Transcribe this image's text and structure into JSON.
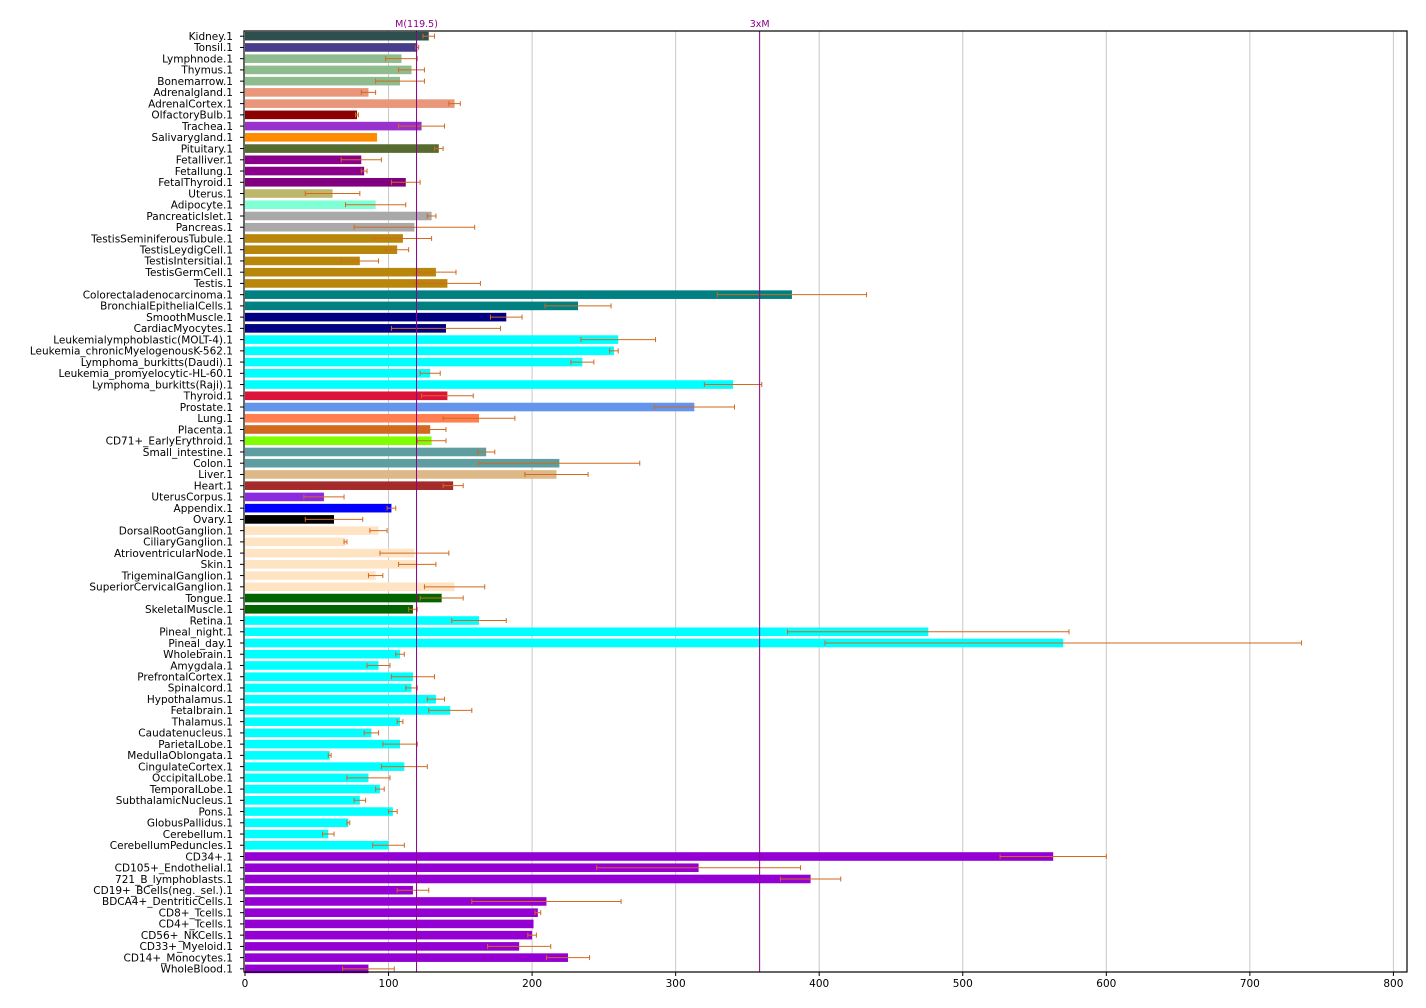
{
  "chart_data": {
    "type": "bar",
    "orientation": "horizontal",
    "title": "",
    "xlabel": "",
    "ylabel": "",
    "xlim": [
      0,
      810
    ],
    "xticks": [
      0,
      100,
      200,
      300,
      400,
      500,
      600,
      700,
      800
    ],
    "grid": "vertical",
    "error_color": "#d2691e",
    "reference_lines": [
      {
        "label": "M(119.5)",
        "value": 119.5,
        "color": "#8b008b"
      },
      {
        "label": "3xM",
        "value": 358.5,
        "color": "#8b008b"
      }
    ],
    "bars": [
      {
        "label": "Kidney.1",
        "value": 128,
        "error": 4,
        "color": "#2f4f4f"
      },
      {
        "label": "Tonsil.1",
        "value": 120,
        "error": 1,
        "color": "#483d8b"
      },
      {
        "label": "Lymphnode.1",
        "value": 109,
        "error": 11,
        "color": "#8fbc8f"
      },
      {
        "label": "Thymus.1",
        "value": 116,
        "error": 9,
        "color": "#8fbc8f"
      },
      {
        "label": "Bonemarrow.1",
        "value": 108,
        "error": 17,
        "color": "#8fbc8f"
      },
      {
        "label": "Adrenalgland.1",
        "value": 86,
        "error": 5,
        "color": "#e9967a"
      },
      {
        "label": "AdrenalCortex.1",
        "value": 146,
        "error": 4,
        "color": "#e9967a"
      },
      {
        "label": "OlfactoryBulb.1",
        "value": 78,
        "error": 1,
        "color": "#8b0000"
      },
      {
        "label": "Trachea.1",
        "value": 123,
        "error": 16,
        "color": "#9932cc"
      },
      {
        "label": "Salivarygland.1",
        "value": 92,
        "error": 0,
        "color": "#ff8c00"
      },
      {
        "label": "Pituitary.1",
        "value": 135,
        "error": 3,
        "color": "#556b2f"
      },
      {
        "label": "Fetalliver.1",
        "value": 81,
        "error": 14,
        "color": "#8b008b"
      },
      {
        "label": "Fetallung.1",
        "value": 83,
        "error": 2,
        "color": "#8b008b"
      },
      {
        "label": "FetalThyroid.1",
        "value": 112,
        "error": 10,
        "color": "#800080"
      },
      {
        "label": "Uterus.1",
        "value": 61,
        "error": 19,
        "color": "#bdb76b"
      },
      {
        "label": "Adipocyte.1",
        "value": 91,
        "error": 21,
        "color": "#7fffd4"
      },
      {
        "label": "PancreaticIslet.1",
        "value": 130,
        "error": 3,
        "color": "#a9a9a9"
      },
      {
        "label": "Pancreas.1",
        "value": 118,
        "error": 42,
        "color": "#a9a9a9"
      },
      {
        "label": "TestisSeminiferousTubule.1",
        "value": 110,
        "error": 20,
        "color": "#b8860b"
      },
      {
        "label": "TestisLeydigCell.1",
        "value": 106,
        "error": 8,
        "color": "#b8860b"
      },
      {
        "label": "TestisIntersitial.1",
        "value": 80,
        "error": 13,
        "color": "#b8860b"
      },
      {
        "label": "TestisGermCell.1",
        "value": 133,
        "error": 14,
        "color": "#b8860b"
      },
      {
        "label": "Testis.1",
        "value": 141,
        "error": 23,
        "color": "#b8860b"
      },
      {
        "label": "Colorectaladenocarcinoma.1",
        "value": 381,
        "error": 52,
        "color": "#008080"
      },
      {
        "label": "BronchialEpithelialCells.1",
        "value": 232,
        "error": 23,
        "color": "#008080"
      },
      {
        "label": "SmoothMuscle.1",
        "value": 182,
        "error": 11,
        "color": "#000080"
      },
      {
        "label": "CardiacMyocytes.1",
        "value": 140,
        "error": 38,
        "color": "#000080"
      },
      {
        "label": "Leukemialymphoblastic(MOLT-4).1",
        "value": 260,
        "error": 26,
        "color": "#00ffff"
      },
      {
        "label": "Leukemia_chronicMyelogenousK-562.1",
        "value": 257,
        "error": 3,
        "color": "#00ffff"
      },
      {
        "label": "Lymphoma_burkitts(Daudi).1",
        "value": 235,
        "error": 8,
        "color": "#00ffff"
      },
      {
        "label": "Leukemia_promyelocytic-HL-60.1",
        "value": 129,
        "error": 7,
        "color": "#00ffff"
      },
      {
        "label": "Lymphoma_burkitts(Raji).1",
        "value": 340,
        "error": 20,
        "color": "#00ffff"
      },
      {
        "label": "Thyroid.1",
        "value": 141,
        "error": 18,
        "color": "#dc143c"
      },
      {
        "label": "Prostate.1",
        "value": 313,
        "error": 28,
        "color": "#6495ed"
      },
      {
        "label": "Lung.1",
        "value": 163,
        "error": 25,
        "color": "#ff7f50"
      },
      {
        "label": "Placenta.1",
        "value": 129,
        "error": 11,
        "color": "#d2691e"
      },
      {
        "label": "CD71+_EarlyErythroid.1",
        "value": 130,
        "error": 10,
        "color": "#7fff00"
      },
      {
        "label": "Small_intestine.1",
        "value": 168,
        "error": 6,
        "color": "#5f9ea0"
      },
      {
        "label": "Colon.1",
        "value": 219,
        "error": 56,
        "color": "#5f9ea0"
      },
      {
        "label": "Liver.1",
        "value": 217,
        "error": 22,
        "color": "#deb887"
      },
      {
        "label": "Heart.1",
        "value": 145,
        "error": 7,
        "color": "#a52a2a"
      },
      {
        "label": "UterusCorpus.1",
        "value": 55,
        "error": 14,
        "color": "#8a2be2"
      },
      {
        "label": "Appendix.1",
        "value": 102,
        "error": 3,
        "color": "#0000ff"
      },
      {
        "label": "Ovary.1",
        "value": 62,
        "error": 20,
        "color": "#000000"
      },
      {
        "label": "DorsalRootGanglion.1",
        "value": 93,
        "error": 6,
        "color": "#ffe4c4"
      },
      {
        "label": "CiliaryGanglion.1",
        "value": 70,
        "error": 1,
        "color": "#ffe4c4"
      },
      {
        "label": "AtrioventricularNode.1",
        "value": 118,
        "error": 24,
        "color": "#ffe4c4"
      },
      {
        "label": "Skin.1",
        "value": 120,
        "error": 13,
        "color": "#ffe4c4"
      },
      {
        "label": "TrigeminalGanglion.1",
        "value": 91,
        "error": 5,
        "color": "#ffe4c4"
      },
      {
        "label": "SuperiorCervicalGanglion.1",
        "value": 146,
        "error": 21,
        "color": "#ffe4c4"
      },
      {
        "label": "Tongue.1",
        "value": 137,
        "error": 15,
        "color": "#006400"
      },
      {
        "label": "SkeletalMuscle.1",
        "value": 117,
        "error": 3,
        "color": "#006400"
      },
      {
        "label": "Retina.1",
        "value": 163,
        "error": 19,
        "color": "#00ffff"
      },
      {
        "label": "Pineal_night.1",
        "value": 476,
        "error": 98,
        "color": "#00ffff"
      },
      {
        "label": "Pineal_day.1",
        "value": 570,
        "error": 166,
        "color": "#00ffff"
      },
      {
        "label": "Wholebrain.1",
        "value": 108,
        "error": 3,
        "color": "#00ffff"
      },
      {
        "label": "Amygdala.1",
        "value": 93,
        "error": 8,
        "color": "#00ffff"
      },
      {
        "label": "PrefrontalCortex.1",
        "value": 117,
        "error": 15,
        "color": "#00ffff"
      },
      {
        "label": "Spinalcord.1",
        "value": 116,
        "error": 4,
        "color": "#00ffff"
      },
      {
        "label": "Hypothalamus.1",
        "value": 133,
        "error": 6,
        "color": "#00ffff"
      },
      {
        "label": "Fetalbrain.1",
        "value": 143,
        "error": 15,
        "color": "#00ffff"
      },
      {
        "label": "Thalamus.1",
        "value": 108,
        "error": 2,
        "color": "#00ffff"
      },
      {
        "label": "Caudatenucleus.1",
        "value": 88,
        "error": 5,
        "color": "#00ffff"
      },
      {
        "label": "ParietalLobe.1",
        "value": 108,
        "error": 12,
        "color": "#00ffff"
      },
      {
        "label": "MedullaOblongata.1",
        "value": 59,
        "error": 1,
        "color": "#00ffff"
      },
      {
        "label": "CingulateCortex.1",
        "value": 111,
        "error": 16,
        "color": "#00ffff"
      },
      {
        "label": "OccipitalLobe.1",
        "value": 86,
        "error": 15,
        "color": "#00ffff"
      },
      {
        "label": "TemporalLobe.1",
        "value": 94,
        "error": 3,
        "color": "#00ffff"
      },
      {
        "label": "SubthalamicNucleus.1",
        "value": 80,
        "error": 4,
        "color": "#00ffff"
      },
      {
        "label": "Pons.1",
        "value": 103,
        "error": 3,
        "color": "#00ffff"
      },
      {
        "label": "GlobusPallidus.1",
        "value": 72,
        "error": 1,
        "color": "#00ffff"
      },
      {
        "label": "Cerebellum.1",
        "value": 58,
        "error": 4,
        "color": "#00ffff"
      },
      {
        "label": "CerebellumPeduncles.1",
        "value": 100,
        "error": 11,
        "color": "#00ffff"
      },
      {
        "label": "CD34+.1",
        "value": 563,
        "error": 37,
        "color": "#9400d3"
      },
      {
        "label": "CD105+_Endothelial.1",
        "value": 316,
        "error": 71,
        "color": "#9400d3"
      },
      {
        "label": "721_B_lymphoblasts.1",
        "value": 394,
        "error": 21,
        "color": "#9400d3"
      },
      {
        "label": "CD19+_BCells(neg._sel.).1",
        "value": 117,
        "error": 11,
        "color": "#9400d3"
      },
      {
        "label": "BDCA4+_DentriticCells.1",
        "value": 210,
        "error": 52,
        "color": "#9400d3"
      },
      {
        "label": "CD8+_Tcells.1",
        "value": 204,
        "error": 2,
        "color": "#9400d3"
      },
      {
        "label": "CD4+_Tcells.1",
        "value": 201,
        "error": 0,
        "color": "#9400d3"
      },
      {
        "label": "CD56+_NKCells.1",
        "value": 200,
        "error": 3,
        "color": "#9400d3"
      },
      {
        "label": "CD33+_Myeloid.1",
        "value": 191,
        "error": 22,
        "color": "#9400d3"
      },
      {
        "label": "CD14+_Monocytes.1",
        "value": 225,
        "error": 15,
        "color": "#9400d3"
      },
      {
        "label": "WholeBlood.1",
        "value": 86,
        "error": 18,
        "color": "#9400d3"
      }
    ]
  }
}
